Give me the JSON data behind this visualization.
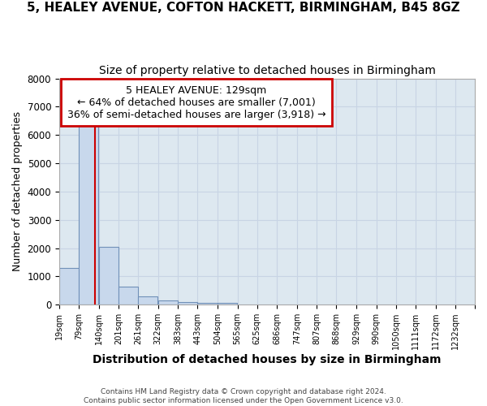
{
  "title1": "5, HEALEY AVENUE, COFTON HACKETT, BIRMINGHAM, B45 8GZ",
  "title2": "Size of property relative to detached houses in Birmingham",
  "xlabel": "Distribution of detached houses by size in Birmingham",
  "ylabel": "Number of detached properties",
  "footer1": "Contains HM Land Registry data © Crown copyright and database right 2024.",
  "footer2": "Contains public sector information licensed under the Open Government Licence v3.0.",
  "bin_labels": [
    "19sqm",
    "79sqm",
    "140sqm",
    "201sqm",
    "261sqm",
    "322sqm",
    "383sqm",
    "443sqm",
    "504sqm",
    "565sqm",
    "625sqm",
    "686sqm",
    "747sqm",
    "807sqm",
    "868sqm",
    "929sqm",
    "990sqm",
    "1050sqm",
    "1111sqm",
    "1172sqm",
    "1232sqm"
  ],
  "bin_edges": [
    19,
    79,
    140,
    201,
    261,
    322,
    383,
    443,
    504,
    565,
    625,
    686,
    747,
    807,
    868,
    929,
    990,
    1050,
    1111,
    1172,
    1232
  ],
  "bar_heights": [
    1300,
    6600,
    2050,
    650,
    290,
    140,
    90,
    60,
    60,
    0,
    0,
    0,
    0,
    0,
    0,
    0,
    0,
    0,
    0,
    0
  ],
  "bar_color": "#c8d8ec",
  "bar_edgecolor": "#7090b8",
  "property_size": 129,
  "property_label": "5 HEALEY AVENUE: 129sqm",
  "annotation_line1": "← 64% of detached houses are smaller (7,001)",
  "annotation_line2": "36% of semi-detached houses are larger (3,918) →",
  "vline_color": "#cc0000",
  "annotation_box_edgecolor": "#cc0000",
  "annotation_box_facecolor": "#ffffff",
  "ylim": [
    0,
    8000
  ],
  "yticks": [
    0,
    1000,
    2000,
    3000,
    4000,
    5000,
    6000,
    7000,
    8000
  ],
  "grid_color": "#c8d4e4",
  "background_color": "#dde8f0",
  "fig_background": "#ffffff"
}
